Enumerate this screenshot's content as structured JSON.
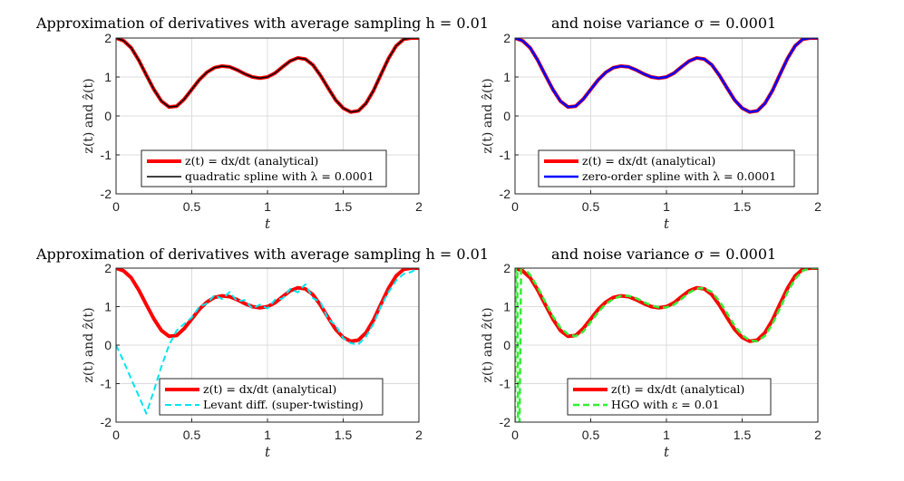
{
  "figure_titles": [
    {
      "left": "Approximation of derivatives with average sampling h = 0.01",
      "right": "and noise variance σ = 0.0001"
    },
    {
      "left": "Approximation of derivatives with average sampling h = 0.01",
      "right": "and noise variance σ = 0.0001"
    }
  ],
  "colors": {
    "analytical": "#ff0000",
    "quadratic": "#000000",
    "zero_order": "#0000ff",
    "levant": "#00e5ee",
    "hgo": "#33ee33"
  },
  "chart_data": [
    {
      "type": "line",
      "xlabel": "t",
      "ylabel": "z(t) and ẑ(t)",
      "xlim": [
        0,
        2
      ],
      "ylim": [
        -2,
        2
      ],
      "xticks": [
        "0",
        "0.5",
        "1",
        "1.5",
        "2"
      ],
      "yticks": [
        "2",
        "1",
        "0",
        "-1",
        "-2"
      ],
      "grid": true,
      "legend_position": "bottom-center",
      "series": [
        {
          "name": "z(t) = dx/dt (analytical)",
          "color": "#ff0000",
          "style": "solid",
          "width": 4,
          "points": [
            [
              0,
              2.0
            ],
            [
              0.05,
              1.93
            ],
            [
              0.1,
              1.75
            ],
            [
              0.15,
              1.43
            ],
            [
              0.2,
              1.05
            ],
            [
              0.25,
              0.68
            ],
            [
              0.3,
              0.38
            ],
            [
              0.35,
              0.23
            ],
            [
              0.4,
              0.25
            ],
            [
              0.45,
              0.43
            ],
            [
              0.5,
              0.68
            ],
            [
              0.55,
              0.93
            ],
            [
              0.6,
              1.12
            ],
            [
              0.65,
              1.24
            ],
            [
              0.7,
              1.28
            ],
            [
              0.75,
              1.26
            ],
            [
              0.8,
              1.18
            ],
            [
              0.85,
              1.08
            ],
            [
              0.9,
              1.0
            ],
            [
              0.95,
              0.97
            ],
            [
              1.0,
              1.0
            ],
            [
              1.05,
              1.1
            ],
            [
              1.1,
              1.26
            ],
            [
              1.15,
              1.41
            ],
            [
              1.2,
              1.49
            ],
            [
              1.25,
              1.46
            ],
            [
              1.3,
              1.31
            ],
            [
              1.35,
              1.04
            ],
            [
              1.4,
              0.72
            ],
            [
              1.45,
              0.41
            ],
            [
              1.5,
              0.2
            ],
            [
              1.55,
              0.1
            ],
            [
              1.6,
              0.13
            ],
            [
              1.65,
              0.32
            ],
            [
              1.7,
              0.65
            ],
            [
              1.75,
              1.07
            ],
            [
              1.8,
              1.48
            ],
            [
              1.85,
              1.8
            ],
            [
              1.9,
              1.97
            ],
            [
              1.95,
              2.0
            ],
            [
              2.0,
              2.0
            ]
          ]
        },
        {
          "name": "quadratic spline with λ = 0.0001",
          "color": "#000000",
          "style": "solid",
          "width": 1.5,
          "same_as": 0
        }
      ]
    },
    {
      "type": "line",
      "xlabel": "t",
      "ylabel": "z(t) and ẑ(t)",
      "xlim": [
        0,
        2
      ],
      "ylim": [
        -2,
        2
      ],
      "xticks": [
        "0",
        "0.5",
        "1",
        "1.5",
        "2"
      ],
      "yticks": [
        "2",
        "1",
        "0",
        "-1",
        "-2"
      ],
      "grid": true,
      "legend_position": "bottom-center",
      "series": [
        {
          "name": "z(t) = dx/dt (analytical)",
          "color": "#ff0000",
          "style": "solid",
          "width": 4,
          "same_as_chart": 0
        },
        {
          "name": "zero-order spline with λ = 0.0001",
          "color": "#0000ff",
          "style": "solid",
          "width": 2.5,
          "same_as": 0
        }
      ]
    },
    {
      "type": "line",
      "xlabel": "t",
      "ylabel": "z(t) and ẑ(t)",
      "xlim": [
        0,
        2
      ],
      "ylim": [
        -2,
        2
      ],
      "xticks": [
        "0",
        "0.5",
        "1",
        "1.5",
        "2"
      ],
      "yticks": [
        "2",
        "1",
        "0",
        "-1",
        "-2"
      ],
      "grid": true,
      "legend_position": "bottom-center",
      "series": [
        {
          "name": "z(t) = dx/dt (analytical)",
          "color": "#ff0000",
          "style": "solid",
          "width": 4,
          "same_as_chart": 0
        },
        {
          "name": "Levant diff. (super-twisting)",
          "color": "#00e5ee",
          "style": "dash",
          "width": 2,
          "points": [
            [
              0,
              0.0
            ],
            [
              0.05,
              -0.42
            ],
            [
              0.1,
              -0.88
            ],
            [
              0.15,
              -1.32
            ],
            [
              0.2,
              -1.78
            ],
            [
              0.25,
              -1.18
            ],
            [
              0.3,
              -0.55
            ],
            [
              0.35,
              0.0
            ],
            [
              0.4,
              0.38
            ],
            [
              0.45,
              0.55
            ],
            [
              0.5,
              0.72
            ],
            [
              0.55,
              1.0
            ],
            [
              0.6,
              1.08
            ],
            [
              0.65,
              1.3
            ],
            [
              0.7,
              1.2
            ],
            [
              0.75,
              1.38
            ],
            [
              0.8,
              1.14
            ],
            [
              0.85,
              1.17
            ],
            [
              0.9,
              0.95
            ],
            [
              0.95,
              1.05
            ],
            [
              1.0,
              0.95
            ],
            [
              1.05,
              1.18
            ],
            [
              1.1,
              1.21
            ],
            [
              1.15,
              1.46
            ],
            [
              1.2,
              1.37
            ],
            [
              1.25,
              1.58
            ],
            [
              1.3,
              1.22
            ],
            [
              1.35,
              1.12
            ],
            [
              1.4,
              0.68
            ],
            [
              1.45,
              0.52
            ],
            [
              1.5,
              0.18
            ],
            [
              1.55,
              0.05
            ],
            [
              1.6,
              0.02
            ],
            [
              1.65,
              0.22
            ],
            [
              1.7,
              0.55
            ],
            [
              1.75,
              1.02
            ],
            [
              1.8,
              1.38
            ],
            [
              1.85,
              1.68
            ],
            [
              1.9,
              1.85
            ],
            [
              1.95,
              1.9
            ],
            [
              2.0,
              2.02
            ]
          ]
        }
      ]
    },
    {
      "type": "line",
      "xlabel": "t",
      "ylabel": "z(t) and ẑ(t)",
      "xlim": [
        0,
        2
      ],
      "ylim": [
        -2,
        2
      ],
      "xticks": [
        "0",
        "0.5",
        "1",
        "1.5",
        "2"
      ],
      "yticks": [
        "2",
        "1",
        "0",
        "-1",
        "-2"
      ],
      "grid": true,
      "legend_position": "bottom-center",
      "series": [
        {
          "name": "z(t) = dx/dt (analytical)",
          "color": "#ff0000",
          "style": "solid",
          "width": 4,
          "same_as_chart": 0
        },
        {
          "name": "HGO with ε = 0.01",
          "color": "#33ee33",
          "style": "dash",
          "width": 2.5,
          "points": [
            [
              0,
              -2.0
            ],
            [
              0.005,
              2.0
            ],
            [
              0.015,
              2.0
            ],
            [
              0.02,
              -2.0
            ],
            [
              0.03,
              -2.0
            ],
            [
              0.04,
              2.1
            ],
            [
              0.05,
              2.05
            ],
            [
              0.1,
              1.82
            ],
            [
              0.15,
              1.5
            ],
            [
              0.2,
              1.12
            ],
            [
              0.25,
              0.75
            ],
            [
              0.3,
              0.45
            ],
            [
              0.35,
              0.28
            ],
            [
              0.4,
              0.23
            ],
            [
              0.45,
              0.35
            ],
            [
              0.5,
              0.6
            ],
            [
              0.55,
              0.86
            ],
            [
              0.6,
              1.07
            ],
            [
              0.65,
              1.2
            ],
            [
              0.7,
              1.28
            ],
            [
              0.75,
              1.28
            ],
            [
              0.8,
              1.22
            ],
            [
              0.85,
              1.12
            ],
            [
              0.9,
              1.03
            ],
            [
              0.95,
              0.98
            ],
            [
              1.0,
              0.98
            ],
            [
              1.05,
              1.05
            ],
            [
              1.1,
              1.2
            ],
            [
              1.15,
              1.36
            ],
            [
              1.2,
              1.47
            ],
            [
              1.25,
              1.48
            ],
            [
              1.3,
              1.38
            ],
            [
              1.35,
              1.14
            ],
            [
              1.4,
              0.83
            ],
            [
              1.45,
              0.5
            ],
            [
              1.5,
              0.26
            ],
            [
              1.55,
              0.12
            ],
            [
              1.6,
              0.1
            ],
            [
              1.65,
              0.24
            ],
            [
              1.7,
              0.55
            ],
            [
              1.75,
              0.96
            ],
            [
              1.8,
              1.38
            ],
            [
              1.85,
              1.72
            ],
            [
              1.9,
              1.93
            ],
            [
              1.95,
              2.0
            ],
            [
              2.0,
              2.0
            ]
          ]
        }
      ]
    }
  ]
}
